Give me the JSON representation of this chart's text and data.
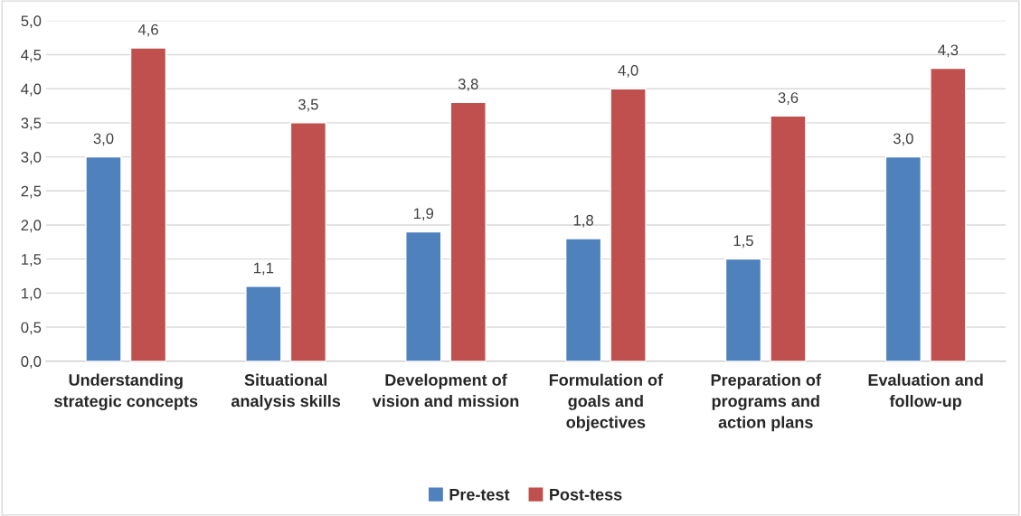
{
  "chart_data": {
    "type": "bar",
    "categories": [
      "Understanding strategic concepts",
      "Situational analysis skills",
      "Development of vision and mission",
      "Formulation of goals and objectives",
      "Preparation of programs and action plans",
      "Evaluation and follow-up"
    ],
    "series": [
      {
        "name": "Pre-test",
        "color": "#4f81bd",
        "values": [
          3.0,
          1.1,
          1.9,
          1.8,
          1.5,
          3.0
        ],
        "value_labels": [
          "3,0",
          "1,1",
          "1,9",
          "1,8",
          "1,5",
          "3,0"
        ]
      },
      {
        "name": "Post-tess",
        "color": "#c0504d",
        "values": [
          4.6,
          3.5,
          3.8,
          4.0,
          3.6,
          4.3
        ],
        "value_labels": [
          "4,6",
          "3,5",
          "3,8",
          "4,0",
          "3,6",
          "4,3"
        ]
      }
    ],
    "ylim": [
      0,
      5
    ],
    "yticks": [
      {
        "value": 0,
        "label": "0,0"
      },
      {
        "value": 0.5,
        "label": "0,5"
      },
      {
        "value": 1,
        "label": "1,0"
      },
      {
        "value": 1.5,
        "label": "1,5"
      },
      {
        "value": 2,
        "label": "2,0"
      },
      {
        "value": 2.5,
        "label": "2,5"
      },
      {
        "value": 3,
        "label": "3,0"
      },
      {
        "value": 3.5,
        "label": "3,5"
      },
      {
        "value": 4,
        "label": "4,0"
      },
      {
        "value": 4.5,
        "label": "4,5"
      },
      {
        "value": 5,
        "label": "5,0"
      }
    ],
    "grid": "y",
    "legend": "bottom"
  }
}
